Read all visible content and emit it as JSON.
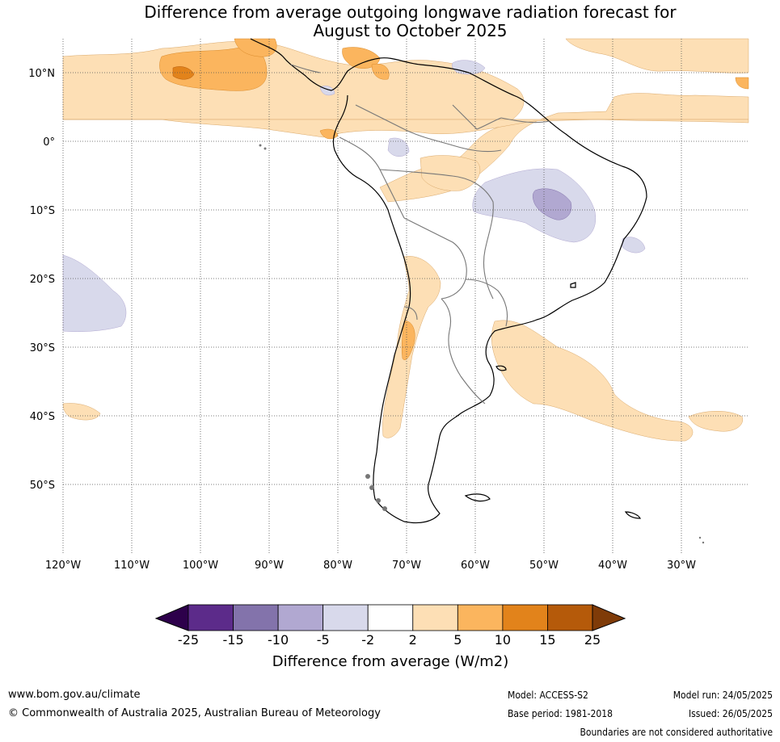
{
  "title_line1": "Difference from average outgoing longwave radiation forecast for",
  "title_line2": "August to October 2025",
  "lat_labels": [
    "10°N",
    "0°",
    "10°S",
    "20°S",
    "30°S",
    "40°S",
    "50°S"
  ],
  "lon_labels": [
    "120°W",
    "110°W",
    "100°W",
    "90°W",
    "80°W",
    "70°W",
    "60°W",
    "50°W",
    "40°W",
    "30°W"
  ],
  "colorbar": {
    "ticks": [
      "-25",
      "-15",
      "-10",
      "-5",
      "-2",
      "2",
      "5",
      "10",
      "15",
      "25"
    ],
    "colors": [
      "#2d004b",
      "#5c2b8a",
      "#8373ab",
      "#b1a8d1",
      "#d8d9eb",
      "#ffffff",
      "#fddfb5",
      "#fbb55e",
      "#e2831b",
      "#b55a0a",
      "#7f3b08"
    ],
    "title": "Difference from average (W/m2)"
  },
  "footer": {
    "url": "www.bom.gov.au/climate",
    "copyright": "© Commonwealth of Australia 2025, Australian Bureau of Meteorology",
    "model": "Model: ACCESS-S2",
    "base_period": "Base period: 1981-2018",
    "model_run": "Model run: 24/05/2025",
    "issued": "Issued: 26/05/2025",
    "disclaimer": "Boundaries are not considered authoritative"
  }
}
